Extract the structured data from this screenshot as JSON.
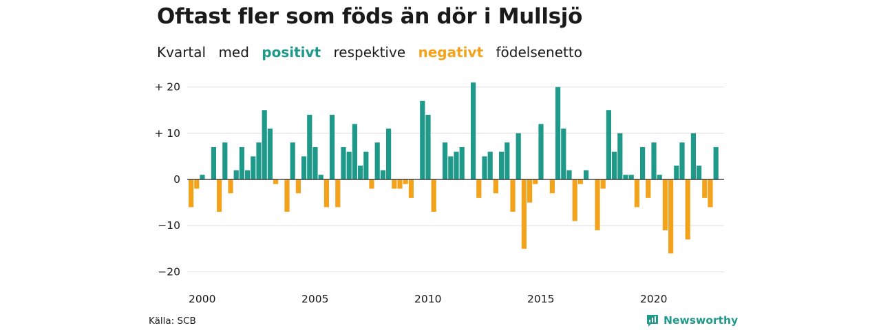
{
  "title": "Oftast fler som föds än dör i Mullsjö",
  "subtitle": {
    "part1": "Kvartal",
    "part2": "med",
    "positive_word": "positivt",
    "part3": "respektive",
    "negative_word": "negativt",
    "part4": "födelsenetto"
  },
  "colors": {
    "positive": "#1f9a8a",
    "negative": "#f3a21b",
    "grid": "#dddddd",
    "zero_line": "#222222"
  },
  "source": "Källa: SCB",
  "brand": {
    "name": "Newsworthy",
    "icon": "newsworthy-logo-icon"
  },
  "chart_data": {
    "type": "bar",
    "title": "Oftast fler som föds än dör i Mullsjö",
    "xlabel": "",
    "ylabel": "",
    "x_start": 2000,
    "periods_per_year": 4,
    "xticks": [
      2000,
      2005,
      2010,
      2015,
      2020
    ],
    "ylim": [
      -22,
      22
    ],
    "yticks": [
      20,
      10,
      0,
      -10,
      -20
    ],
    "ytick_labels": [
      "+ 20",
      "+ 10",
      "0",
      "−10",
      "−20"
    ],
    "grid": true,
    "values": [
      -6,
      -2,
      1,
      0,
      7,
      -7,
      8,
      -3,
      2,
      7,
      2,
      5,
      8,
      15,
      11,
      -1,
      0,
      -7,
      8,
      -3,
      5,
      14,
      7,
      1,
      -6,
      14,
      -6,
      7,
      6,
      12,
      3,
      6,
      -2,
      8,
      2,
      11,
      -2,
      -2,
      -1,
      -4,
      0,
      17,
      14,
      -7,
      0,
      8,
      5,
      6,
      7,
      0,
      21,
      -4,
      5,
      6,
      -3,
      6,
      8,
      -7,
      10,
      -15,
      -5,
      -1,
      12,
      0,
      -3,
      20,
      11,
      2,
      -9,
      -1,
      2,
      0,
      -11,
      -2,
      15,
      6,
      10,
      1,
      1,
      -6,
      7,
      -4,
      8,
      1,
      -11,
      -16,
      3,
      8,
      -13,
      10,
      3,
      -4,
      -6,
      7
    ]
  }
}
